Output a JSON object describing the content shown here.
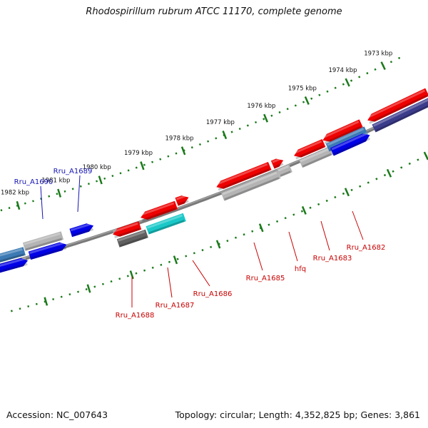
{
  "title": "Rhodospirillum rubrum ATCC 11170, complete genome",
  "footer": {
    "accession": "Accession: NC_007643",
    "summary": "Topology: circular; Length: 4,352,825 bp; Genes: 3,861"
  },
  "colors": {
    "backbone": "#7a7a7a",
    "scale_ticks": "#1a7a1a",
    "top_label": "#1414b4",
    "bottom_label": "#c80000",
    "gene_red": "#ee0000",
    "gene_blue": "#0000e6",
    "gene_steel": "#3c7ab4",
    "gene_grey": "#b4b4b4",
    "gene_dark_grey": "#606060",
    "gene_cyan": "#19c8c8",
    "gene_navy": "#3c3c8c"
  },
  "scale_ticks": [
    {
      "label": "1973 kbp"
    },
    {
      "label": "1974 kbp"
    },
    {
      "label": "1975 kbp"
    },
    {
      "label": "1976 kbp"
    },
    {
      "label": "1977 kbp"
    },
    {
      "label": "1978 kbp"
    },
    {
      "label": "1979 kbp"
    },
    {
      "label": "1980 kbp"
    },
    {
      "label": "1981 kbp"
    },
    {
      "label": "1982 kbp"
    }
  ],
  "gene_labels_top": [
    "Rru_A1690",
    "Rru_A1689"
  ],
  "gene_labels_bottom": [
    "Rru_A1688",
    "Rru_A1687",
    "Rru_A1686",
    "Rru_A1685",
    "hfq",
    "Rru_A1683",
    "Rru_A1682"
  ]
}
